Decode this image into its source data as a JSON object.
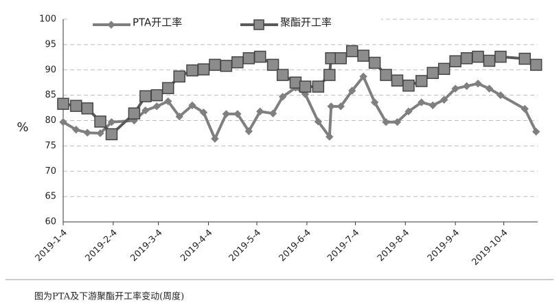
{
  "chart_data": {
    "type": "line",
    "ylabel": "%",
    "x": [
      0,
      8,
      15,
      23,
      30,
      44,
      51,
      58,
      65,
      72,
      80,
      87,
      94,
      101,
      108,
      115,
      122,
      130,
      136,
      144,
      150,
      158,
      165,
      166,
      172,
      179,
      186,
      193,
      200,
      207,
      214,
      222,
      229,
      236,
      243,
      250,
      257,
      264,
      271,
      286,
      293
    ],
    "xlim": [
      0,
      294
    ],
    "xticks": [
      {
        "value": 0,
        "label": "2019-1-4"
      },
      {
        "value": 31,
        "label": "2019-2-4"
      },
      {
        "value": 59,
        "label": "2019-3-4"
      },
      {
        "value": 90,
        "label": "2019-4-4"
      },
      {
        "value": 120,
        "label": "2019-5-4"
      },
      {
        "value": 151,
        "label": "2019-6-4"
      },
      {
        "value": 181,
        "label": "2019-7-4"
      },
      {
        "value": 212,
        "label": "2019-8-4"
      },
      {
        "value": 243,
        "label": "2019-9-4"
      },
      {
        "value": 273,
        "label": "2019-10-4"
      }
    ],
    "ylim": [
      60,
      100
    ],
    "yticks": [
      60,
      65,
      70,
      75,
      80,
      85,
      90,
      95,
      100
    ],
    "grid": true,
    "series": [
      {
        "name": "PTA开工率",
        "color": "#7f7f7f",
        "marker": "diamond",
        "values": [
          79.7,
          78.2,
          77.6,
          77.5,
          79.7,
          80.0,
          82.0,
          82.8,
          83.8,
          80.8,
          83.0,
          81.6,
          76.4,
          81.3,
          81.3,
          77.9,
          81.8,
          81.4,
          84.7,
          86.5,
          85.2,
          79.8,
          76.8,
          82.8,
          82.8,
          85.9,
          88.7,
          83.6,
          79.7,
          79.7,
          81.8,
          83.6,
          83.0,
          84.1,
          86.3,
          86.8,
          87.3,
          86.3,
          85.0,
          82.3,
          77.8
        ]
      },
      {
        "name": "聚酯开工率",
        "color": "#595959",
        "marker": "square",
        "values": [
          83.3,
          82.9,
          82.4,
          79.8,
          77.3,
          81.4,
          84.8,
          85.0,
          86.4,
          88.7,
          89.9,
          90.1,
          91.0,
          90.8,
          91.5,
          92.3,
          92.6,
          91.0,
          89.0,
          87.5,
          86.7,
          86.7,
          89.0,
          92.3,
          92.3,
          93.7,
          92.8,
          91.4,
          89.0,
          87.9,
          86.9,
          87.8,
          89.4,
          90.2,
          91.7,
          92.3,
          92.6,
          91.8,
          92.6,
          92.2,
          91.0
        ]
      }
    ]
  },
  "caption": "图为PTA及下游聚酯开工率变动(周度)"
}
